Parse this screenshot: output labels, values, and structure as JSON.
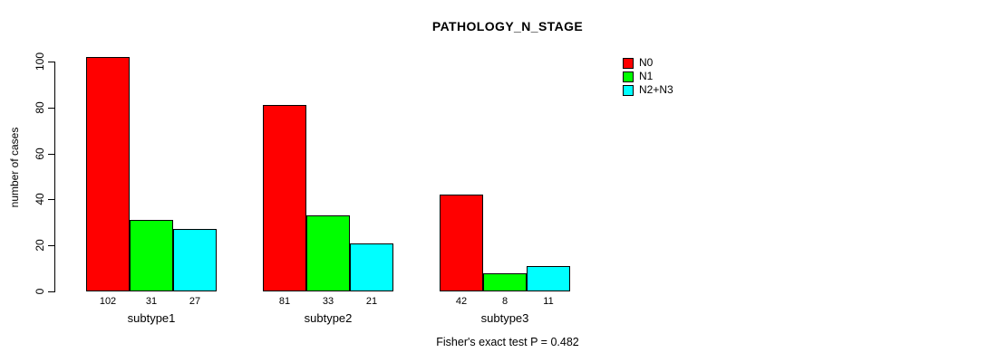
{
  "chart_data": {
    "type": "bar",
    "title": "PATHOLOGY_N_STAGE",
    "categories": [
      "subtype1",
      "subtype2",
      "subtype3"
    ],
    "series": [
      {
        "name": "N0",
        "color": "#ff0000",
        "values": [
          102,
          81,
          42
        ]
      },
      {
        "name": "N1",
        "color": "#00ff00",
        "values": [
          31,
          33,
          8
        ]
      },
      {
        "name": "N2+N3",
        "color": "#00ffff",
        "values": [
          27,
          21,
          11
        ]
      }
    ],
    "xlabel": "",
    "ylabel": "number of cases",
    "ylim": [
      0,
      100
    ],
    "yticks": [
      0,
      20,
      40,
      60,
      80,
      100
    ],
    "grid": false,
    "legend_position": "top-right",
    "bar_value_labels": true,
    "annotation": "Fisher's exact test P = 0.482"
  }
}
